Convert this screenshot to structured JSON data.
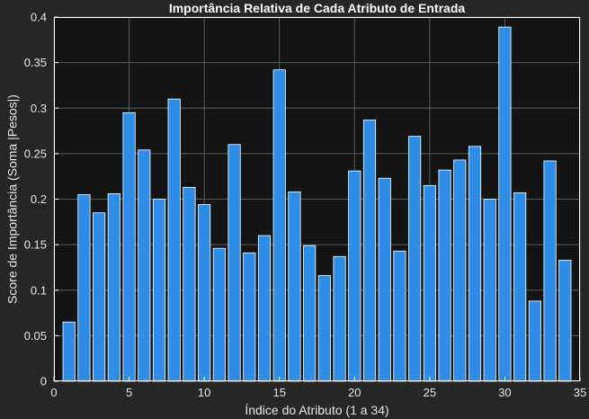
{
  "chart_data": {
    "type": "bar",
    "title": "Importância Relativa de Cada Atributo de Entrada",
    "xlabel": "Índice do Atributo (1 a 34)",
    "ylabel": "Score de Importância (Soma |Pesos|)",
    "xlim": [
      0,
      35
    ],
    "ylim": [
      0,
      0.4
    ],
    "x_ticks": [
      0,
      5,
      10,
      15,
      20,
      25,
      30,
      35
    ],
    "y_ticks": [
      0,
      0.05,
      0.1,
      0.15,
      0.2,
      0.25,
      0.3,
      0.35,
      0.4
    ],
    "grid": true,
    "bar_color": "#2e8de6",
    "background_color": "#141414",
    "figure_color": "#262626",
    "categories": [
      1,
      2,
      3,
      4,
      5,
      6,
      7,
      8,
      9,
      10,
      11,
      12,
      13,
      14,
      15,
      16,
      17,
      18,
      19,
      20,
      21,
      22,
      23,
      24,
      25,
      26,
      27,
      28,
      29,
      30,
      31,
      32,
      33,
      34
    ],
    "values": [
      0.065,
      0.205,
      0.185,
      0.206,
      0.295,
      0.254,
      0.2,
      0.31,
      0.213,
      0.194,
      0.146,
      0.26,
      0.141,
      0.16,
      0.342,
      0.208,
      0.149,
      0.116,
      0.137,
      0.231,
      0.287,
      0.223,
      0.143,
      0.269,
      0.215,
      0.232,
      0.243,
      0.258,
      0.2,
      0.389,
      0.207,
      0.088,
      0.242,
      0.133
    ]
  }
}
